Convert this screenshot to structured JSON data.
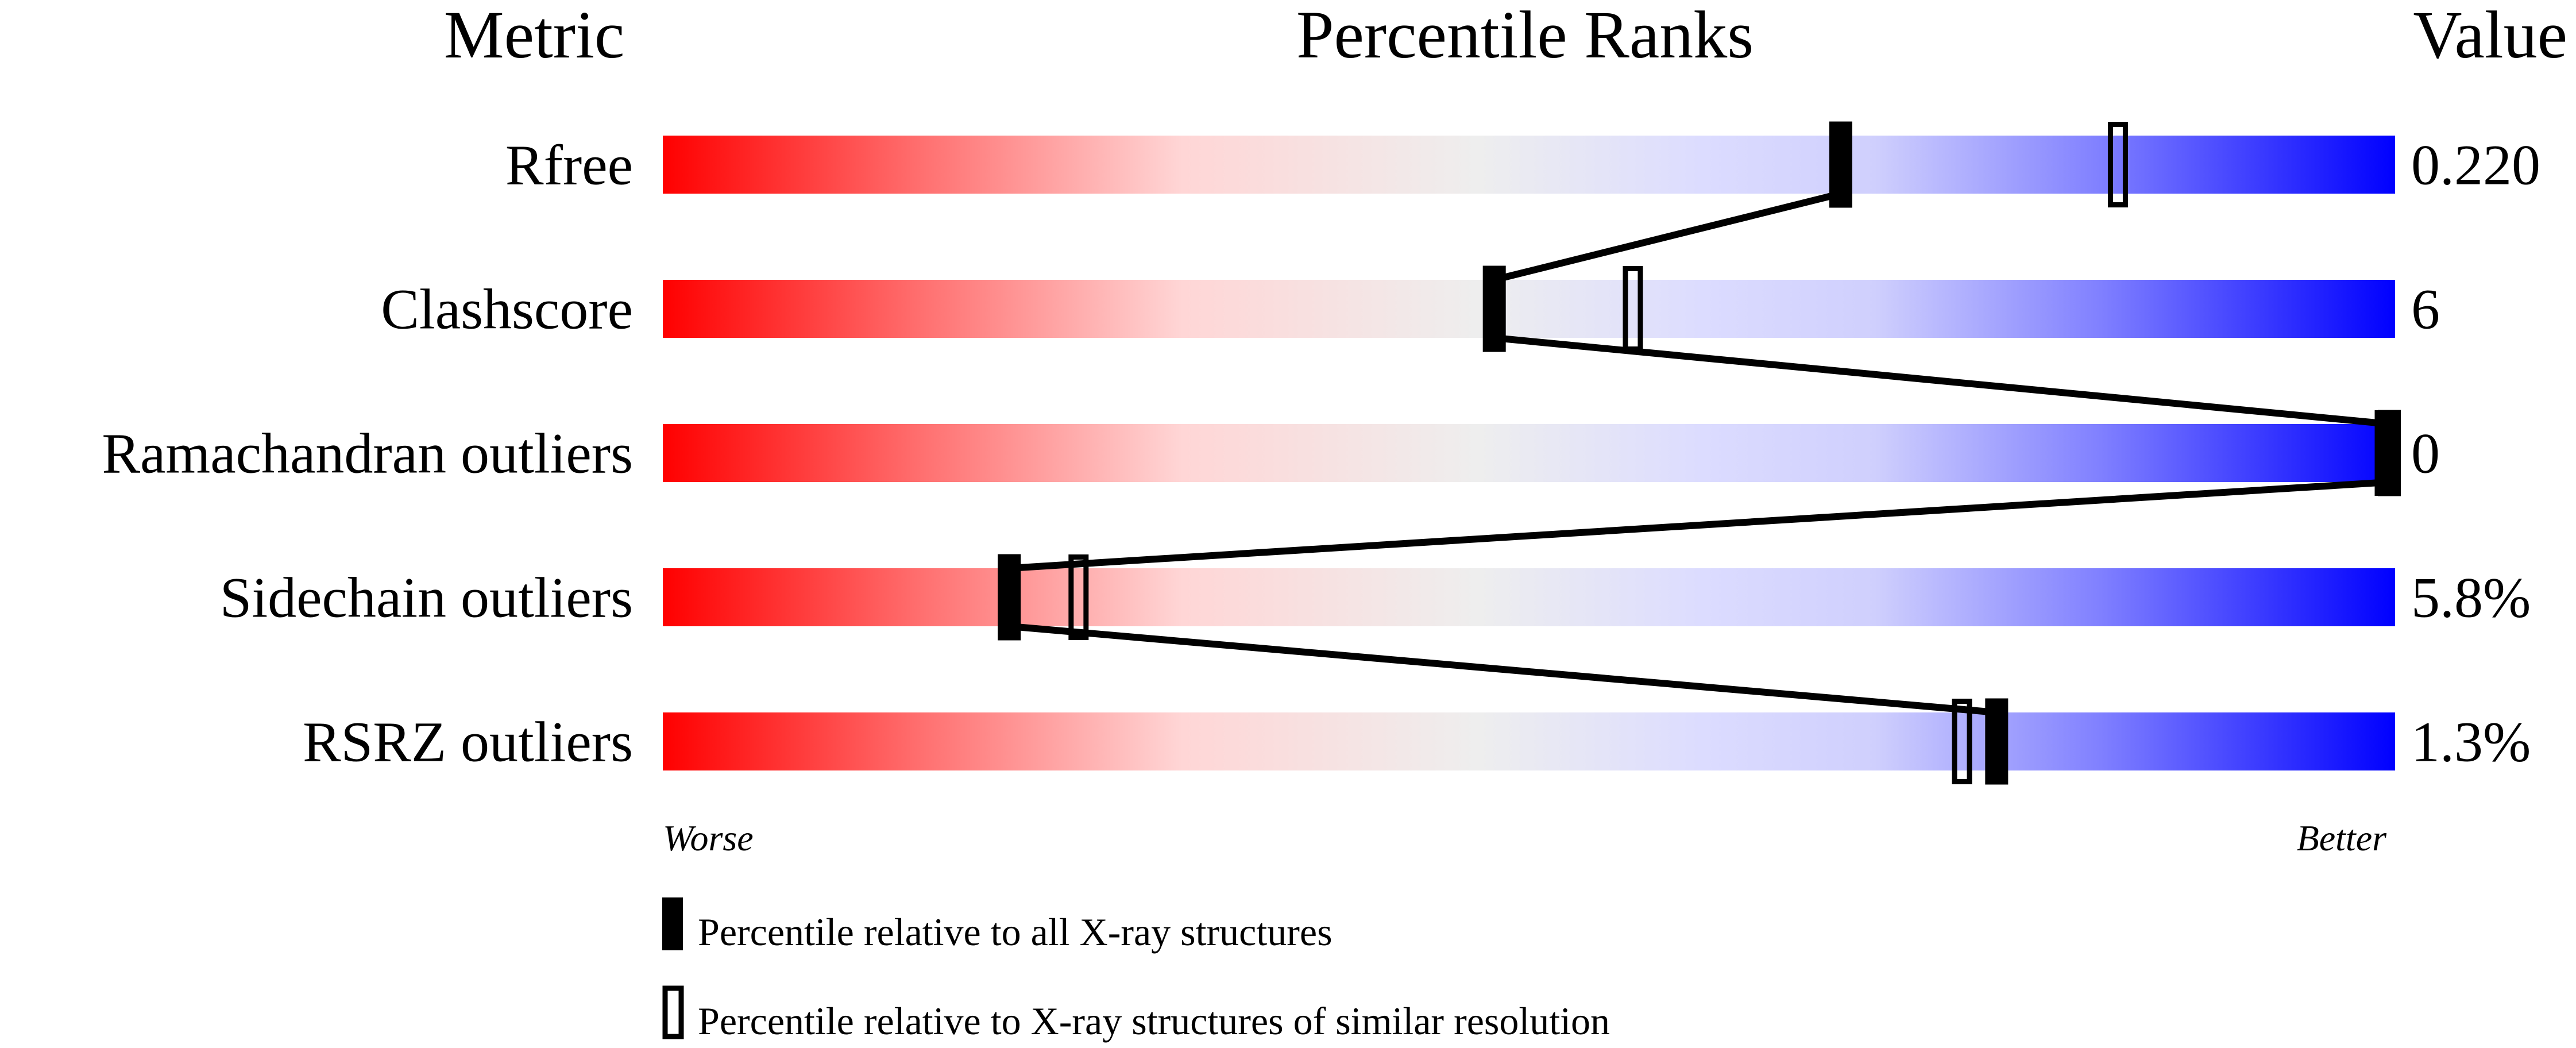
{
  "chart_data": {
    "type": "percentile-bar",
    "headers": {
      "metric": "Metric",
      "ranks": "Percentile Ranks",
      "value": "Value"
    },
    "xlim": [
      0,
      100
    ],
    "axis_labels": {
      "left": "Worse",
      "right": "Better"
    },
    "metrics": [
      {
        "name": "Rfree",
        "value": "0.220",
        "percentile_all": 68,
        "percentile_similar": 84
      },
      {
        "name": "Clashscore",
        "value": "6",
        "percentile_all": 48,
        "percentile_similar": 56
      },
      {
        "name": "Ramachandran outliers",
        "value": "0",
        "percentile_all": 100,
        "percentile_similar": 100
      },
      {
        "name": "Sidechain outliers",
        "value": "5.8%",
        "percentile_all": 20,
        "percentile_similar": 24
      },
      {
        "name": "RSRZ outliers",
        "value": "1.3%",
        "percentile_all": 77,
        "percentile_similar": 75
      }
    ],
    "legend": {
      "filled": "Percentile relative to all X-ray structures",
      "open": "Percentile relative to X-ray structures of similar resolution"
    },
    "colors": {
      "worse": "#ff0000",
      "mid": "#eeeeee",
      "better": "#0000ff",
      "marker": "#000000"
    }
  }
}
